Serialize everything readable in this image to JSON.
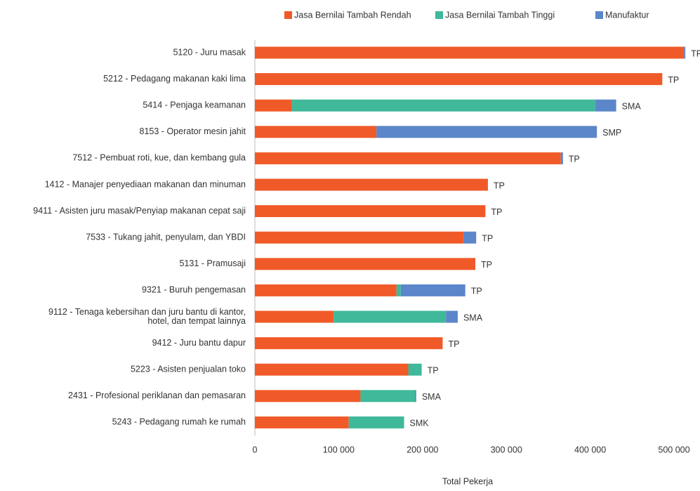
{
  "chart_data": {
    "type": "stacked_bar_horizontal",
    "categories": [
      "5120 - Juru masak",
      "5212 - Pedagang makanan kaki lima",
      "5414 - Penjaga keamanan",
      "8153 - Operator mesin jahit",
      "7512 - Pembuat roti, kue, dan kembang gula",
      "1412 - Manajer penyediaan makanan dan minuman",
      "9411 - Asisten juru masak/Penyiap makanan cepat saji",
      "7533 - Tukang jahit, penyulam, dan YBDI",
      "5131 - Pramusaji",
      "9321 - Buruh pengemasan",
      [
        "9112 - Tenaga kebersihan dan juru bantu di kantor,",
        "hotel, dan tempat lainnya"
      ],
      "9412 - Juru bantu dapur",
      "5223 - Asisten penjualan toko",
      "2431 - Profesional periklanan dan pemasaran",
      "5243 - Pedagang rumah ke rumah"
    ],
    "series": [
      {
        "name": "Jasa Bernilai Tambah Rendah",
        "color": "#f05a28",
        "values": [
          512000,
          486000,
          44000,
          145000,
          365000,
          278000,
          275000,
          249000,
          263000,
          169000,
          94000,
          224000,
          183000,
          126000,
          112000
        ]
      },
      {
        "name": "Jasa Bernilai Tambah Tinggi",
        "color": "#3fb99a",
        "values": [
          0,
          0,
          362000,
          0,
          0,
          0,
          0,
          0,
          0,
          5000,
          134000,
          0,
          16000,
          65000,
          66000
        ]
      },
      {
        "name": "Manufaktur",
        "color": "#5b86c9",
        "values": [
          1500,
          0,
          25000,
          263000,
          2500,
          0,
          0,
          15000,
          0,
          77000,
          14000,
          0,
          0,
          1500,
          0
        ]
      }
    ],
    "end_labels": [
      "TP",
      "TP",
      "SMA",
      "SMP",
      "TP",
      "TP",
      "TP",
      "TP",
      "TP",
      "TP",
      "SMA",
      "TP",
      "TP",
      "SMA",
      "SMK"
    ],
    "xlabel": "Total Pekerja",
    "xlim": [
      0,
      500000
    ],
    "xticks": [
      0,
      {
        "value": 100000,
        "label": "100 000"
      },
      {
        "value": 200000,
        "label": "200 000"
      },
      {
        "value": 300000,
        "label": "300 000"
      },
      {
        "value": 400000,
        "label": "400 000"
      },
      {
        "value": 500000,
        "label": "500 000"
      }
    ],
    "legend": "top"
  }
}
